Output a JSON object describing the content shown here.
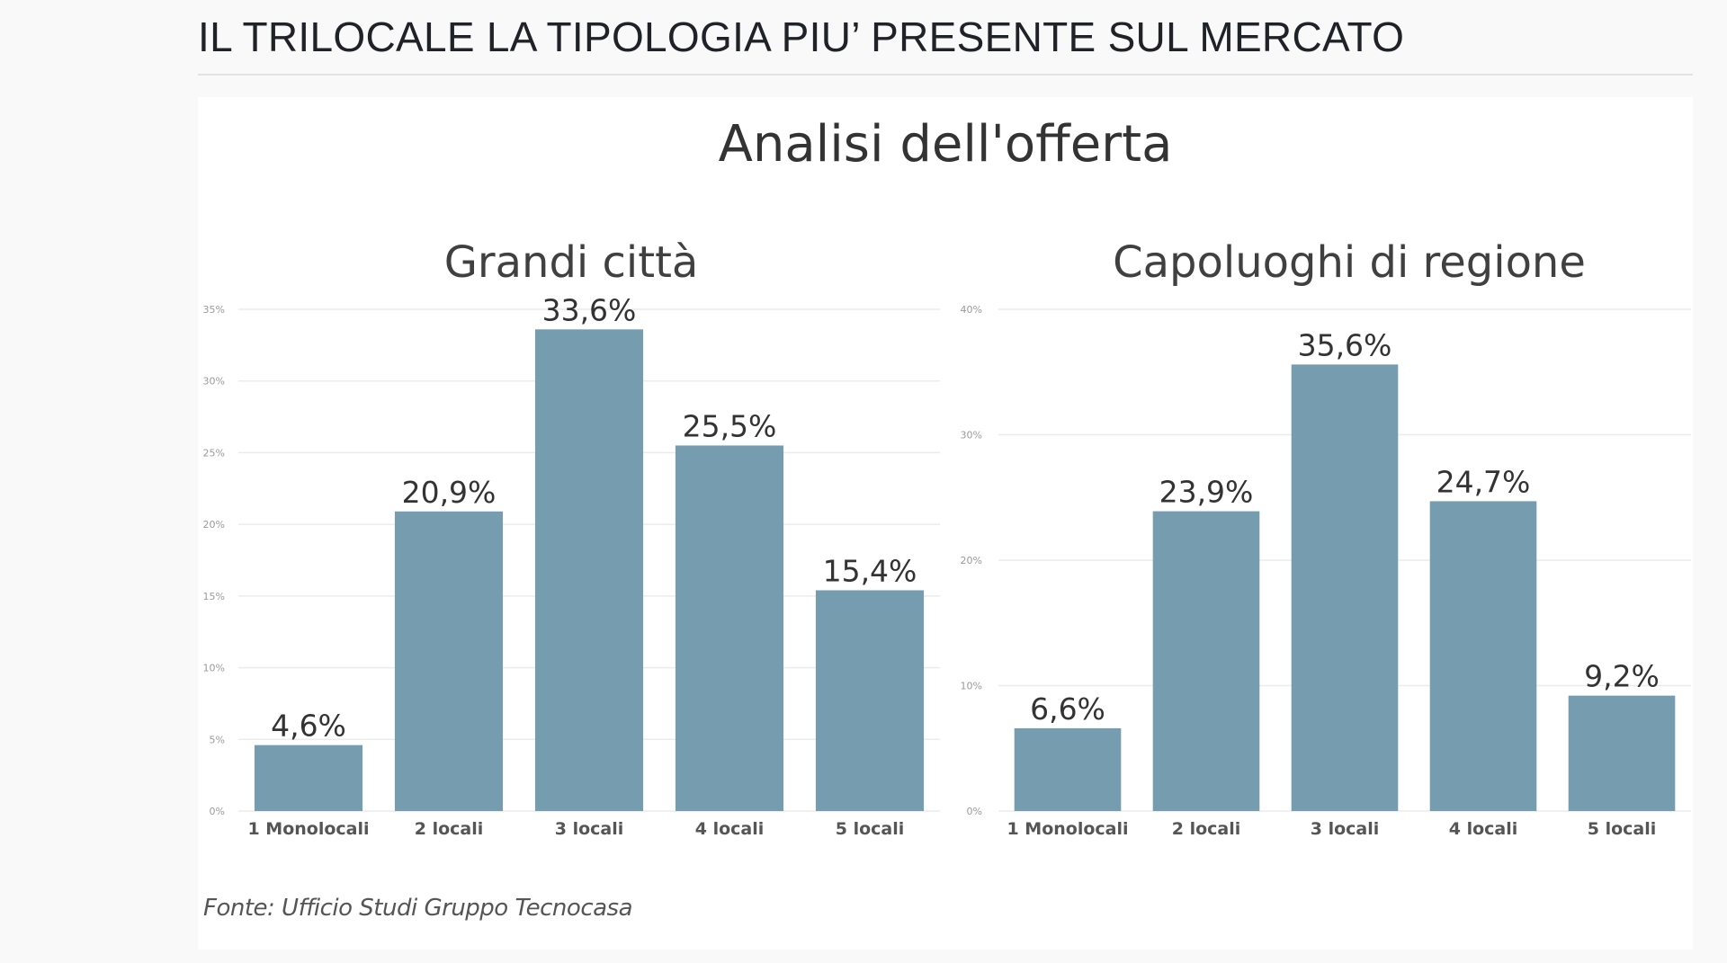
{
  "article": {
    "title": "IL TRILOCALE LA TIPOLOGIA PIU’ PRESENTE SUL MERCATO"
  },
  "figure": {
    "title": "Analisi dell'offerta",
    "source": "Fonte: Ufficio Studi Gruppo Tecnocasa",
    "bar_color": "#769daf",
    "gridline_color": "#ececec"
  },
  "chart_data": [
    {
      "type": "bar",
      "title": "Grandi città",
      "categories": [
        "1 Monolocali",
        "2 locali",
        "3 locali",
        "4 locali",
        "5 locali"
      ],
      "values": [
        4.6,
        20.9,
        33.6,
        25.5,
        15.4
      ],
      "data_labels": [
        "4,6%",
        "20,9%",
        "33,6%",
        "25,5%",
        "15,4%"
      ],
      "ylim": [
        0,
        35
      ],
      "yticks": [
        0,
        5,
        10,
        15,
        20,
        25,
        30,
        35
      ],
      "ytick_labels": [
        "0%",
        "5%",
        "10%",
        "15%",
        "20%",
        "25%",
        "30%",
        "35%"
      ],
      "xlabel": "",
      "ylabel": "",
      "grid": true
    },
    {
      "type": "bar",
      "title": "Capoluoghi di regione",
      "categories": [
        "1 Monolocali",
        "2 locali",
        "3 locali",
        "4 locali",
        "5 locali"
      ],
      "values": [
        6.6,
        23.9,
        35.6,
        24.7,
        9.2
      ],
      "data_labels": [
        "6,6%",
        "23,9%",
        "35,6%",
        "24,7%",
        "9,2%"
      ],
      "ylim": [
        0,
        40
      ],
      "yticks": [
        0,
        10,
        20,
        30,
        40
      ],
      "ytick_labels": [
        "0%",
        "10%",
        "20%",
        "30%",
        "40%"
      ],
      "xlabel": "",
      "ylabel": "",
      "grid": true
    }
  ]
}
